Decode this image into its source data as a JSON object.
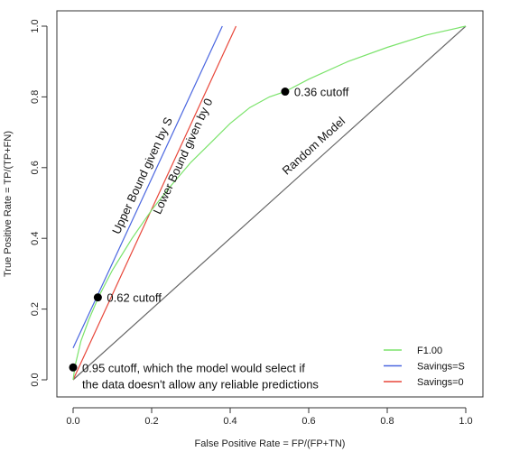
{
  "chart_data": {
    "type": "line",
    "xlabel": "False Positive Rate = FP/(FP+TN)",
    "ylabel": "True Positive Rate = TP/(TP+FN)",
    "xlim": [
      0,
      1
    ],
    "ylim": [
      0,
      1
    ],
    "x_ticks": [
      "0.0",
      "0.2",
      "0.4",
      "0.6",
      "0.8",
      "1.0"
    ],
    "y_ticks": [
      "0.0",
      "0.2",
      "0.4",
      "0.6",
      "0.8",
      "1.0"
    ],
    "grid": false,
    "legend_position": "bottom-right",
    "series": [
      {
        "name": "F1.00",
        "color": "#7be36b",
        "points": [
          [
            0,
            0
          ],
          [
            0.005,
            0.04
          ],
          [
            0.02,
            0.11
          ],
          [
            0.04,
            0.17
          ],
          [
            0.065,
            0.235
          ],
          [
            0.1,
            0.31
          ],
          [
            0.15,
            0.4
          ],
          [
            0.2,
            0.48
          ],
          [
            0.25,
            0.55
          ],
          [
            0.3,
            0.615
          ],
          [
            0.35,
            0.67
          ],
          [
            0.4,
            0.725
          ],
          [
            0.45,
            0.77
          ],
          [
            0.5,
            0.8
          ],
          [
            0.54,
            0.815
          ],
          [
            0.6,
            0.85
          ],
          [
            0.7,
            0.9
          ],
          [
            0.8,
            0.94
          ],
          [
            0.9,
            0.975
          ],
          [
            1.0,
            1.0
          ]
        ]
      },
      {
        "name": "Savings=S",
        "color": "#4a66e0",
        "points": [
          [
            0,
            0.09
          ],
          [
            0.38,
            1.0
          ]
        ]
      },
      {
        "name": "Savings=0",
        "color": "#e8473a",
        "points": [
          [
            0,
            0
          ],
          [
            0.415,
            1.0
          ]
        ]
      },
      {
        "color": "#666666",
        "points": [
          [
            0,
            0
          ],
          [
            1,
            1
          ]
        ]
      }
    ],
    "markers": [
      {
        "x": 0.0,
        "y": 0.035,
        "label_lines": [
          "0.95 cutoff, which the model would select if",
          "the data doesn't allow any reliable predictions"
        ]
      },
      {
        "x": 0.063,
        "y": 0.233,
        "label_lines": [
          "0.62 cutoff"
        ]
      },
      {
        "x": 0.54,
        "y": 0.815,
        "label_lines": [
          "0.36 cutoff"
        ]
      }
    ],
    "line_labels": [
      {
        "text": "Upper Bound given by S"
      },
      {
        "text": "Lower Bound given by 0"
      },
      {
        "text": "Random Model"
      }
    ]
  }
}
